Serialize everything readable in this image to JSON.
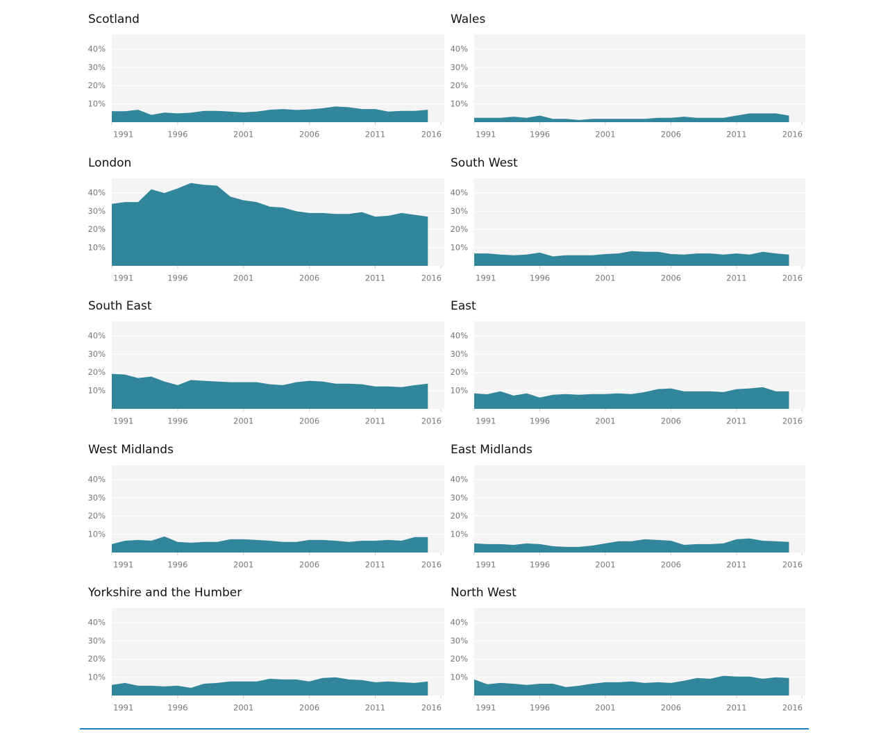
{
  "chart_data": [
    {
      "type": "area",
      "title": "Scotland",
      "color": "#31869b",
      "grid": true,
      "x": [
        1991,
        1992,
        1993,
        1994,
        1995,
        1996,
        1997,
        1998,
        1999,
        2000,
        2001,
        2002,
        2003,
        2004,
        2005,
        2006,
        2007,
        2008,
        2009,
        2010,
        2011,
        2012,
        2013,
        2014,
        2015
      ],
      "values": [
        6,
        6,
        6.8,
        4,
        5.3,
        4.8,
        5.2,
        6.2,
        6.2,
        5.8,
        5.4,
        5.8,
        6.8,
        7.2,
        6.7,
        7,
        7.6,
        8.6,
        8.2,
        7.2,
        7.2,
        5.8,
        6.2,
        6.2,
        6.8
      ],
      "xlim": [
        1991,
        2016.25
      ],
      "xticks": [
        1991,
        1996,
        2001,
        2006,
        2011,
        2016
      ],
      "ylim": [
        0,
        48
      ],
      "yticks": [
        {
          "value": 10,
          "label": "10%"
        },
        {
          "value": 20,
          "label": "20%"
        },
        {
          "value": 30,
          "label": "30%"
        },
        {
          "value": 40,
          "label": "40%"
        }
      ]
    },
    {
      "type": "area",
      "title": "Wales",
      "color": "#31869b",
      "grid": true,
      "x": [
        1991,
        1992,
        1993,
        1994,
        1995,
        1996,
        1997,
        1998,
        1999,
        2000,
        2001,
        2002,
        2003,
        2004,
        2005,
        2006,
        2007,
        2008,
        2009,
        2010,
        2011,
        2012,
        2013,
        2014,
        2015
      ],
      "values": [
        2.4,
        2.4,
        2.4,
        3,
        2.4,
        3.6,
        1.8,
        1.8,
        1.2,
        1.8,
        1.8,
        1.8,
        1.8,
        1.8,
        2.4,
        2.4,
        3,
        2.4,
        2.4,
        2.4,
        3.6,
        4.8,
        4.8,
        4.8,
        3.6
      ],
      "xlim": [
        1991,
        2016.25
      ],
      "xticks": [
        1991,
        1996,
        2001,
        2006,
        2011,
        2016
      ],
      "ylim": [
        0,
        48
      ],
      "yticks": [
        {
          "value": 10,
          "label": "10%"
        },
        {
          "value": 20,
          "label": "20%"
        },
        {
          "value": 30,
          "label": "30%"
        },
        {
          "value": 40,
          "label": "40%"
        }
      ]
    },
    {
      "type": "area",
      "title": "London",
      "color": "#31869b",
      "grid": true,
      "x": [
        1991,
        1992,
        1993,
        1994,
        1995,
        1996,
        1997,
        1998,
        1999,
        2000,
        2001,
        2002,
        2003,
        2004,
        2005,
        2006,
        2007,
        2008,
        2009,
        2010,
        2011,
        2012,
        2013,
        2014,
        2015
      ],
      "values": [
        34,
        35,
        35,
        42,
        40,
        42.5,
        45.5,
        44.5,
        44,
        38,
        36,
        35,
        32.5,
        32,
        30,
        29,
        29,
        28.5,
        28.5,
        29.5,
        27,
        27.5,
        29,
        28,
        27
      ],
      "xlim": [
        1991,
        2016.25
      ],
      "xticks": [
        1991,
        1996,
        2001,
        2006,
        2011,
        2016
      ],
      "ylim": [
        0,
        48
      ],
      "yticks": [
        {
          "value": 10,
          "label": "10%"
        },
        {
          "value": 20,
          "label": "20%"
        },
        {
          "value": 30,
          "label": "30%"
        },
        {
          "value": 40,
          "label": "40%"
        }
      ]
    },
    {
      "type": "area",
      "title": "South West",
      "color": "#31869b",
      "grid": true,
      "x": [
        1991,
        1992,
        1993,
        1994,
        1995,
        1996,
        1997,
        1998,
        1999,
        2000,
        2001,
        2002,
        2003,
        2004,
        2005,
        2006,
        2007,
        2008,
        2009,
        2010,
        2011,
        2012,
        2013,
        2014,
        2015
      ],
      "values": [
        6.8,
        6.8,
        6.2,
        5.8,
        6.2,
        7.3,
        5.2,
        5.8,
        5.8,
        5.8,
        6.5,
        6.8,
        8.1,
        7.7,
        7.7,
        6.5,
        6.2,
        6.8,
        6.8,
        6.2,
        6.8,
        6.2,
        7.7,
        6.8,
        6.2
      ],
      "xlim": [
        1991,
        2016.25
      ],
      "xticks": [
        1991,
        1996,
        2001,
        2006,
        2011,
        2016
      ],
      "ylim": [
        0,
        48
      ],
      "yticks": [
        {
          "value": 10,
          "label": "10%"
        },
        {
          "value": 20,
          "label": "20%"
        },
        {
          "value": 30,
          "label": "30%"
        },
        {
          "value": 40,
          "label": "40%"
        }
      ]
    },
    {
      "type": "area",
      "title": "South East",
      "color": "#31869b",
      "grid": true,
      "x": [
        1991,
        1992,
        1993,
        1994,
        1995,
        1996,
        1997,
        1998,
        1999,
        2000,
        2001,
        2002,
        2003,
        2004,
        2005,
        2006,
        2007,
        2008,
        2009,
        2010,
        2011,
        2012,
        2013,
        2014,
        2015
      ],
      "values": [
        19.2,
        18.8,
        16.9,
        17.7,
        15,
        13,
        15.8,
        15.4,
        15,
        14.6,
        14.6,
        14.6,
        13.5,
        13,
        14.6,
        15.4,
        15,
        13.8,
        13.8,
        13.5,
        12.3,
        12.3,
        11.9,
        13,
        13.8
      ],
      "xlim": [
        1991,
        2016.25
      ],
      "xticks": [
        1991,
        1996,
        2001,
        2006,
        2011,
        2016
      ],
      "ylim": [
        0,
        48
      ],
      "yticks": [
        {
          "value": 10,
          "label": "10%"
        },
        {
          "value": 20,
          "label": "20%"
        },
        {
          "value": 30,
          "label": "30%"
        },
        {
          "value": 40,
          "label": "40%"
        }
      ]
    },
    {
      "type": "area",
      "title": "East",
      "color": "#31869b",
      "grid": true,
      "x": [
        1991,
        1992,
        1993,
        1994,
        1995,
        1996,
        1997,
        1998,
        1999,
        2000,
        2001,
        2002,
        2003,
        2004,
        2005,
        2006,
        2007,
        2008,
        2009,
        2010,
        2011,
        2012,
        2013,
        2014,
        2015
      ],
      "values": [
        8.5,
        8,
        9.6,
        7.3,
        8.5,
        6.2,
        7.7,
        8.1,
        7.7,
        8.1,
        8.1,
        8.5,
        8.1,
        9.2,
        10.8,
        11.2,
        9.6,
        9.6,
        9.6,
        9.2,
        10.8,
        11.2,
        11.9,
        9.6,
        9.6
      ],
      "xlim": [
        1991,
        2016.25
      ],
      "xticks": [
        1991,
        1996,
        2001,
        2006,
        2011,
        2016
      ],
      "ylim": [
        0,
        48
      ],
      "yticks": [
        {
          "value": 10,
          "label": "10%"
        },
        {
          "value": 20,
          "label": "20%"
        },
        {
          "value": 30,
          "label": "30%"
        },
        {
          "value": 40,
          "label": "40%"
        }
      ]
    },
    {
      "type": "area",
      "title": "West Midlands",
      "color": "#31869b",
      "grid": true,
      "x": [
        1991,
        1992,
        1993,
        1994,
        1995,
        1996,
        1997,
        1998,
        1999,
        2000,
        2001,
        2002,
        2003,
        2004,
        2005,
        2006,
        2007,
        2008,
        2009,
        2010,
        2011,
        2012,
        2013,
        2014,
        2015
      ],
      "values": [
        4.6,
        6.5,
        6.9,
        6.5,
        8.8,
        5.8,
        5.4,
        5.8,
        5.8,
        7.3,
        7.3,
        6.9,
        6.5,
        5.8,
        5.8,
        6.9,
        6.9,
        6.5,
        5.8,
        6.5,
        6.5,
        6.9,
        6.5,
        8.5,
        8.5
      ],
      "xlim": [
        1991,
        2016.25
      ],
      "xticks": [
        1991,
        1996,
        2001,
        2006,
        2011,
        2016
      ],
      "ylim": [
        0,
        48
      ],
      "yticks": [
        {
          "value": 10,
          "label": "10%"
        },
        {
          "value": 20,
          "label": "20%"
        },
        {
          "value": 30,
          "label": "30%"
        },
        {
          "value": 40,
          "label": "40%"
        }
      ]
    },
    {
      "type": "area",
      "title": "East Midlands",
      "color": "#31869b",
      "grid": true,
      "x": [
        1991,
        1992,
        1993,
        1994,
        1995,
        1996,
        1997,
        1998,
        1999,
        2000,
        2001,
        2002,
        2003,
        2004,
        2005,
        2006,
        2007,
        2008,
        2009,
        2010,
        2011,
        2012,
        2013,
        2014,
        2015
      ],
      "values": [
        5,
        4.6,
        4.6,
        4.2,
        5,
        4.6,
        3.5,
        3.1,
        3.1,
        3.8,
        5,
        6.2,
        6.2,
        7.3,
        6.9,
        6.5,
        4.2,
        4.6,
        4.6,
        5,
        7.3,
        7.7,
        6.5,
        6.2,
        5.8
      ],
      "xlim": [
        1991,
        2016.25
      ],
      "xticks": [
        1991,
        1996,
        2001,
        2006,
        2011,
        2016
      ],
      "ylim": [
        0,
        48
      ],
      "yticks": [
        {
          "value": 10,
          "label": "10%"
        },
        {
          "value": 20,
          "label": "20%"
        },
        {
          "value": 30,
          "label": "30%"
        },
        {
          "value": 40,
          "label": "40%"
        }
      ]
    },
    {
      "type": "area",
      "title": "Yorkshire and the Humber",
      "color": "#31869b",
      "grid": true,
      "x": [
        1991,
        1992,
        1993,
        1994,
        1995,
        1996,
        1997,
        1998,
        1999,
        2000,
        2001,
        2002,
        2003,
        2004,
        2005,
        2006,
        2007,
        2008,
        2009,
        2010,
        2011,
        2012,
        2013,
        2014,
        2015
      ],
      "values": [
        5.8,
        6.9,
        5.4,
        5.4,
        5,
        5.4,
        4.2,
        6.5,
        6.9,
        7.7,
        7.7,
        7.7,
        9.2,
        8.8,
        8.8,
        7.7,
        9.6,
        10,
        8.8,
        8.5,
        7.3,
        7.7,
        7.3,
        6.9,
        7.7
      ],
      "xlim": [
        1991,
        2016.25
      ],
      "xticks": [
        1991,
        1996,
        2001,
        2006,
        2011,
        2016
      ],
      "ylim": [
        0,
        48
      ],
      "yticks": [
        {
          "value": 10,
          "label": "10%"
        },
        {
          "value": 20,
          "label": "20%"
        },
        {
          "value": 30,
          "label": "30%"
        },
        {
          "value": 40,
          "label": "40%"
        }
      ]
    },
    {
      "type": "area",
      "title": "North West",
      "color": "#31869b",
      "grid": true,
      "x": [
        1991,
        1992,
        1993,
        1994,
        1995,
        1996,
        1997,
        1998,
        1999,
        2000,
        2001,
        2002,
        2003,
        2004,
        2005,
        2006,
        2007,
        2008,
        2009,
        2010,
        2011,
        2012,
        2013,
        2014,
        2015
      ],
      "values": [
        8.8,
        6.2,
        6.9,
        6.5,
        5.8,
        6.5,
        6.5,
        4.6,
        5.4,
        6.5,
        7.3,
        7.3,
        7.7,
        6.9,
        7.3,
        6.9,
        8.1,
        9.6,
        9.2,
        10.8,
        10.4,
        10.4,
        9.2,
        10,
        9.6
      ],
      "xlim": [
        1991,
        2016.25
      ],
      "xticks": [
        1991,
        1996,
        2001,
        2006,
        2011,
        2016
      ],
      "ylim": [
        0,
        48
      ],
      "yticks": [
        {
          "value": 10,
          "label": "10%"
        },
        {
          "value": 20,
          "label": "20%"
        },
        {
          "value": 30,
          "label": "30%"
        },
        {
          "value": 40,
          "label": "40%"
        }
      ]
    }
  ]
}
